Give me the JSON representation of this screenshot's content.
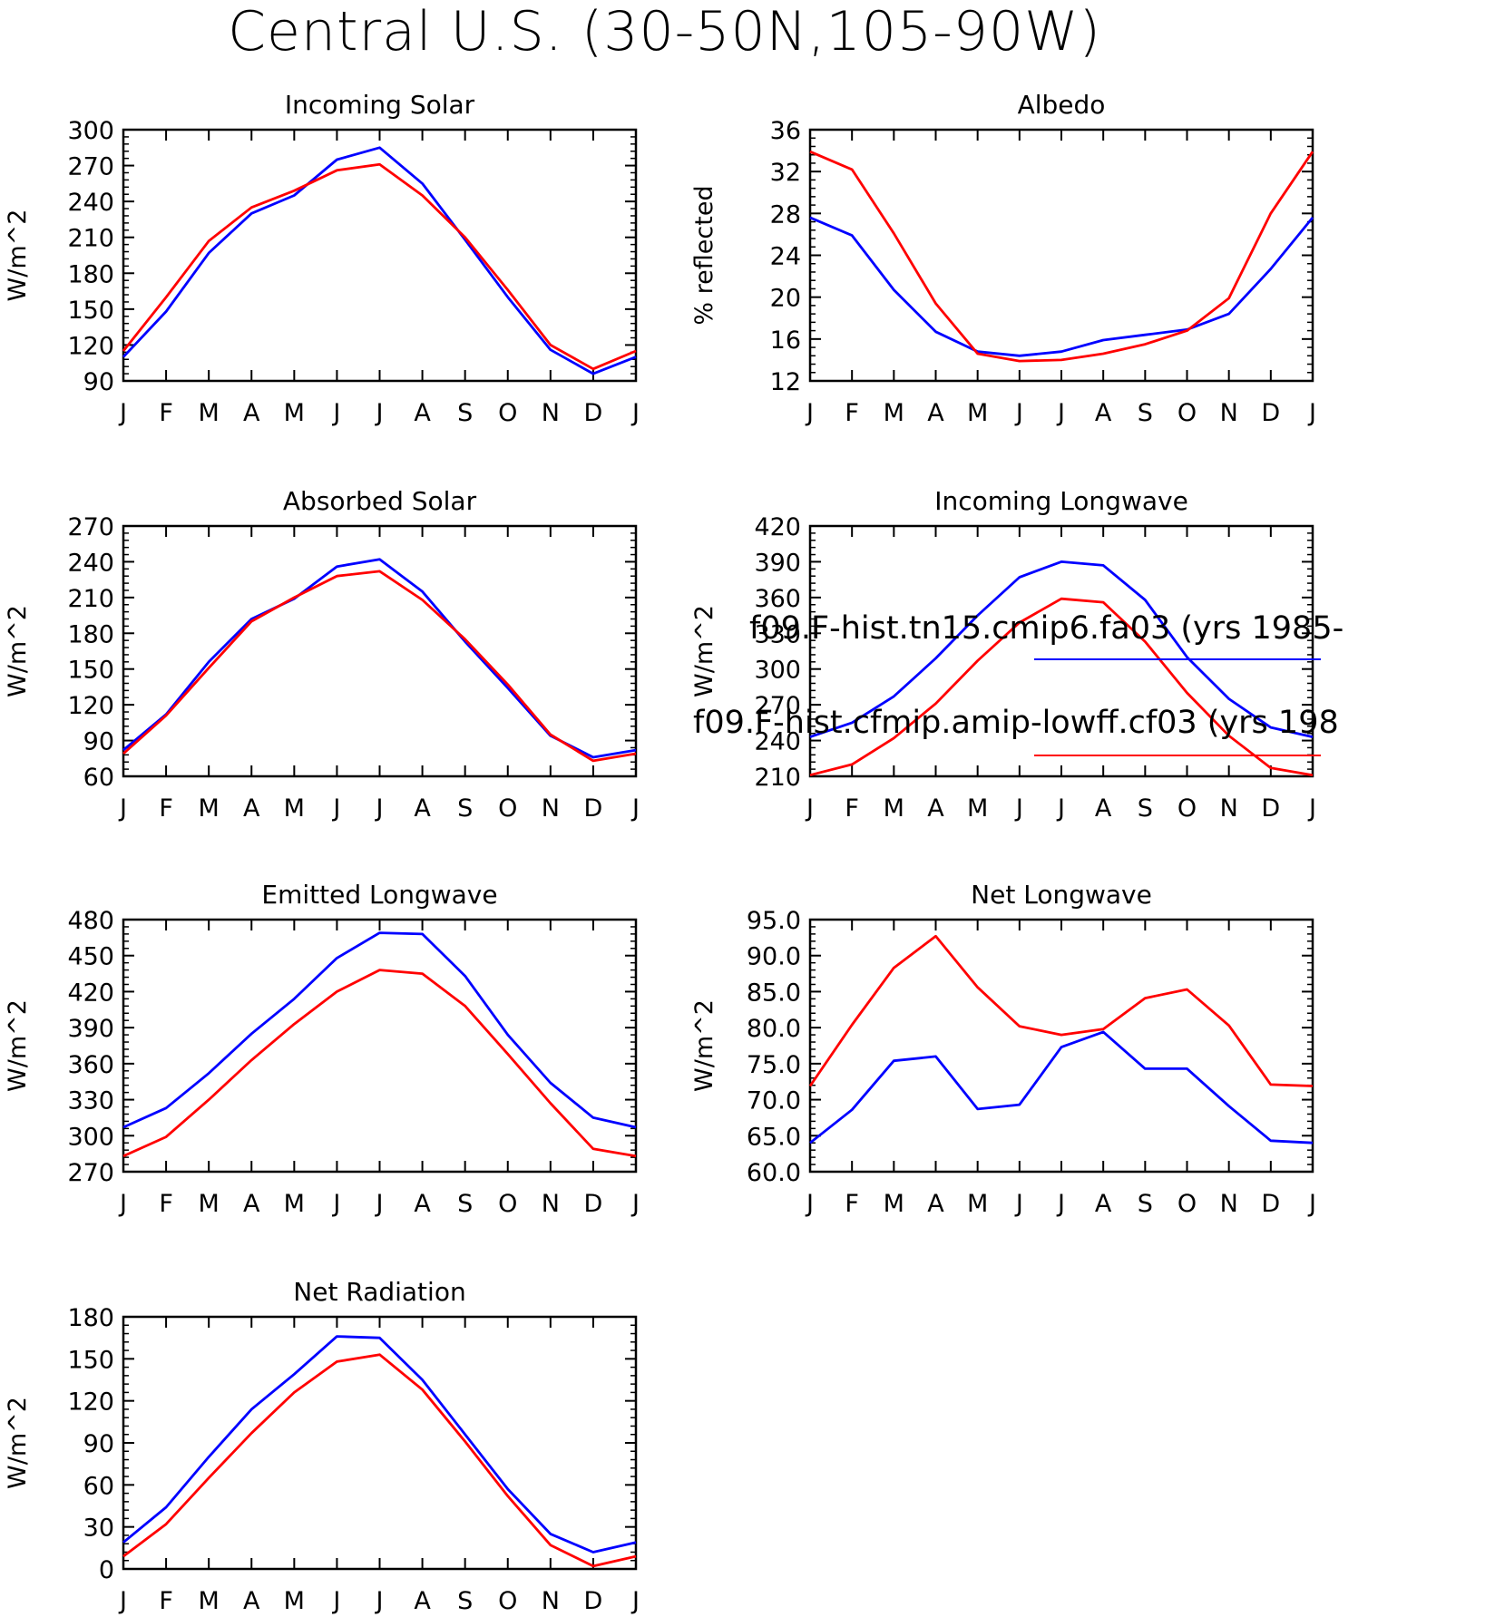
{
  "title": "Central U.S. (30-50N,105-90W)",
  "colors": {
    "series1": "#0000ff",
    "series2": "#ff0000"
  },
  "legend": {
    "entries": [
      {
        "label": "f09.F-hist.tn15.cmip6.fa03 (yrs 1985-",
        "color": "#0000ff"
      },
      {
        "label": "f09.F-hist.cfmip.amip-lowff.cf03 (yrs 198",
        "color": "#ff0000"
      }
    ]
  },
  "chart_data": [
    {
      "type": "line",
      "title": "Incoming Solar",
      "ylabel": "W/m^2",
      "categories": [
        "J",
        "F",
        "M",
        "A",
        "M",
        "J",
        "J",
        "A",
        "S",
        "O",
        "N",
        "D",
        "J"
      ],
      "ylim": [
        90,
        300
      ],
      "yticks": [
        90,
        120,
        150,
        180,
        210,
        240,
        270,
        300
      ],
      "ytick_labels": [
        "90",
        "120",
        "150",
        "180",
        "210",
        "240",
        "270",
        "300"
      ],
      "series": [
        {
          "values": [
            110,
            148,
            197,
            230,
            245,
            275,
            285,
            255,
            208,
            160,
            116,
            96,
            110
          ]
        },
        {
          "values": [
            115,
            160,
            207,
            235,
            249,
            266,
            271,
            245,
            210,
            166,
            120,
            100,
            115
          ]
        }
      ]
    },
    {
      "type": "line",
      "title": "Albedo",
      "ylabel": "% reflected",
      "categories": [
        "J",
        "F",
        "M",
        "A",
        "M",
        "J",
        "J",
        "A",
        "S",
        "O",
        "N",
        "D",
        "J"
      ],
      "ylim": [
        12,
        36
      ],
      "yticks": [
        12,
        16,
        20,
        24,
        28,
        32,
        36
      ],
      "ytick_labels": [
        "12",
        "16",
        "20",
        "24",
        "28",
        "32",
        "36"
      ],
      "series": [
        {
          "values": [
            27.6,
            25.9,
            20.7,
            16.7,
            14.8,
            14.4,
            14.8,
            15.9,
            16.4,
            16.9,
            18.4,
            22.7,
            27.6
          ]
        },
        {
          "values": [
            33.9,
            32.2,
            26.1,
            19.4,
            14.6,
            13.9,
            14.0,
            14.6,
            15.5,
            16.8,
            19.9,
            28.0,
            33.9
          ]
        }
      ]
    },
    {
      "type": "line",
      "title": "Absorbed Solar",
      "ylabel": "W/m^2",
      "categories": [
        "J",
        "F",
        "M",
        "A",
        "M",
        "J",
        "J",
        "A",
        "S",
        "O",
        "N",
        "D",
        "J"
      ],
      "ylim": [
        60,
        270
      ],
      "yticks": [
        60,
        90,
        120,
        150,
        180,
        210,
        240,
        270
      ],
      "ytick_labels": [
        "60",
        "90",
        "120",
        "150",
        "180",
        "210",
        "240",
        "270"
      ],
      "series": [
        {
          "values": [
            82,
            112,
            156,
            192,
            209,
            236,
            242,
            215,
            173,
            134,
            94,
            76,
            82
          ]
        },
        {
          "values": [
            79,
            111,
            151,
            190,
            210,
            228,
            232,
            208,
            175,
            137,
            95,
            73,
            79
          ]
        }
      ]
    },
    {
      "type": "line",
      "title": "Incoming Longwave",
      "ylabel": "W/m^2",
      "categories": [
        "J",
        "F",
        "M",
        "A",
        "M",
        "J",
        "J",
        "A",
        "S",
        "O",
        "N",
        "D",
        "J"
      ],
      "ylim": [
        210,
        420
      ],
      "yticks": [
        210,
        240,
        270,
        300,
        330,
        360,
        390,
        420
      ],
      "ytick_labels": [
        "210",
        "240",
        "270",
        "300",
        "330",
        "360",
        "390",
        "420"
      ],
      "series": [
        {
          "values": [
            243,
            255,
            277,
            309,
            345,
            377,
            390,
            387,
            358,
            310,
            275,
            251,
            243
          ]
        },
        {
          "values": [
            211,
            220,
            242,
            271,
            307,
            339,
            359,
            356,
            323,
            280,
            244,
            217,
            211
          ]
        }
      ]
    },
    {
      "type": "line",
      "title": "Emitted Longwave",
      "ylabel": "W/m^2",
      "categories": [
        "J",
        "F",
        "M",
        "A",
        "M",
        "J",
        "J",
        "A",
        "S",
        "O",
        "N",
        "D",
        "J"
      ],
      "ylim": [
        270,
        480
      ],
      "yticks": [
        270,
        300,
        330,
        360,
        390,
        420,
        450,
        480
      ],
      "ytick_labels": [
        "270",
        "300",
        "330",
        "360",
        "390",
        "420",
        "450",
        "480"
      ],
      "series": [
        {
          "values": [
            307,
            323,
            352,
            385,
            414,
            448,
            469,
            468,
            433,
            384,
            344,
            315,
            307
          ]
        },
        {
          "values": [
            283,
            299,
            330,
            363,
            393,
            420,
            438,
            435,
            408,
            368,
            327,
            289,
            283
          ]
        }
      ]
    },
    {
      "type": "line",
      "title": "Net Longwave",
      "ylabel": "W/m^2",
      "categories": [
        "J",
        "F",
        "M",
        "A",
        "M",
        "J",
        "J",
        "A",
        "S",
        "O",
        "N",
        "D",
        "J"
      ],
      "ylim": [
        60,
        95
      ],
      "yticks": [
        60,
        65,
        70,
        75,
        80,
        85,
        90,
        95
      ],
      "ytick_labels": [
        "60.0",
        "65.0",
        "70.0",
        "75.0",
        "80.0",
        "85.0",
        "90.0",
        "95.0"
      ],
      "series": [
        {
          "values": [
            64.0,
            68.6,
            75.4,
            76.0,
            68.7,
            69.3,
            77.3,
            79.4,
            74.3,
            74.3,
            69.1,
            64.3,
            64.0
          ]
        },
        {
          "values": [
            71.9,
            80.4,
            88.3,
            92.7,
            85.6,
            80.2,
            79.0,
            79.8,
            84.1,
            85.3,
            80.3,
            72.1,
            71.9
          ]
        }
      ]
    },
    {
      "type": "line",
      "title": "Net Radiation",
      "ylabel": "W/m^2",
      "categories": [
        "J",
        "F",
        "M",
        "A",
        "M",
        "J",
        "J",
        "A",
        "S",
        "O",
        "N",
        "D",
        "J"
      ],
      "ylim": [
        0,
        180
      ],
      "yticks": [
        0,
        30,
        60,
        90,
        120,
        150,
        180
      ],
      "ytick_labels": [
        "0",
        "30",
        "60",
        "90",
        "120",
        "150",
        "180"
      ],
      "series": [
        {
          "values": [
            19,
            44,
            80,
            114,
            139,
            166,
            165,
            135,
            96,
            57,
            25,
            12,
            19
          ]
        },
        {
          "values": [
            9,
            32,
            65,
            97,
            126,
            148,
            153,
            128,
            91,
            52,
            17,
            2,
            9
          ]
        }
      ]
    }
  ]
}
